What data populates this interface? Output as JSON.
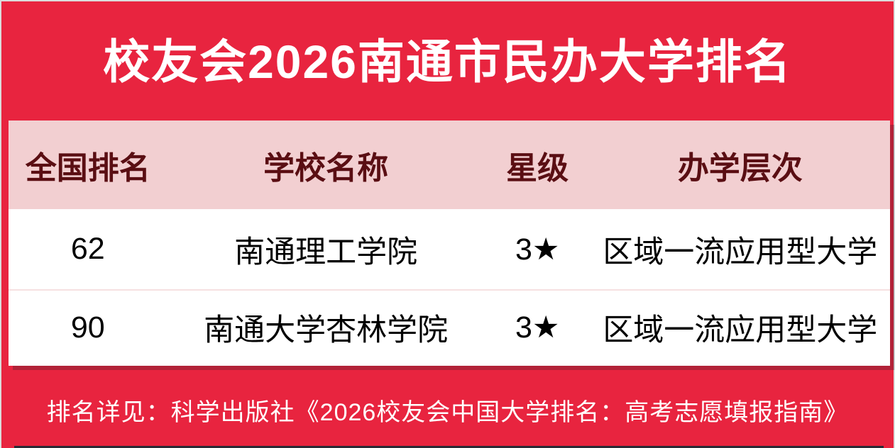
{
  "chart_data": {
    "type": "table",
    "title": "校友会2026南通市民办大学排名",
    "columns": [
      "全国排名",
      "学校名称",
      "星级",
      "办学层次"
    ],
    "rows": [
      [
        "62",
        "南通理工学院",
        "3★",
        "区域一流应用型大学"
      ],
      [
        "90",
        "南通大学杏林学院",
        "3★",
        "区域一流应用型大学"
      ]
    ],
    "footnote": "排名详见：科学出版社《2026校友会中国大学排名：高考志愿填报指南》"
  },
  "colors": {
    "background": "#E8243F",
    "header_bg": "#F2CFD1",
    "header_text": "#5A0E13",
    "row_text": "#000000",
    "title_text": "#FFFFFF",
    "divider": "#F6E0E1",
    "card_bg": "#FFFFFF"
  }
}
